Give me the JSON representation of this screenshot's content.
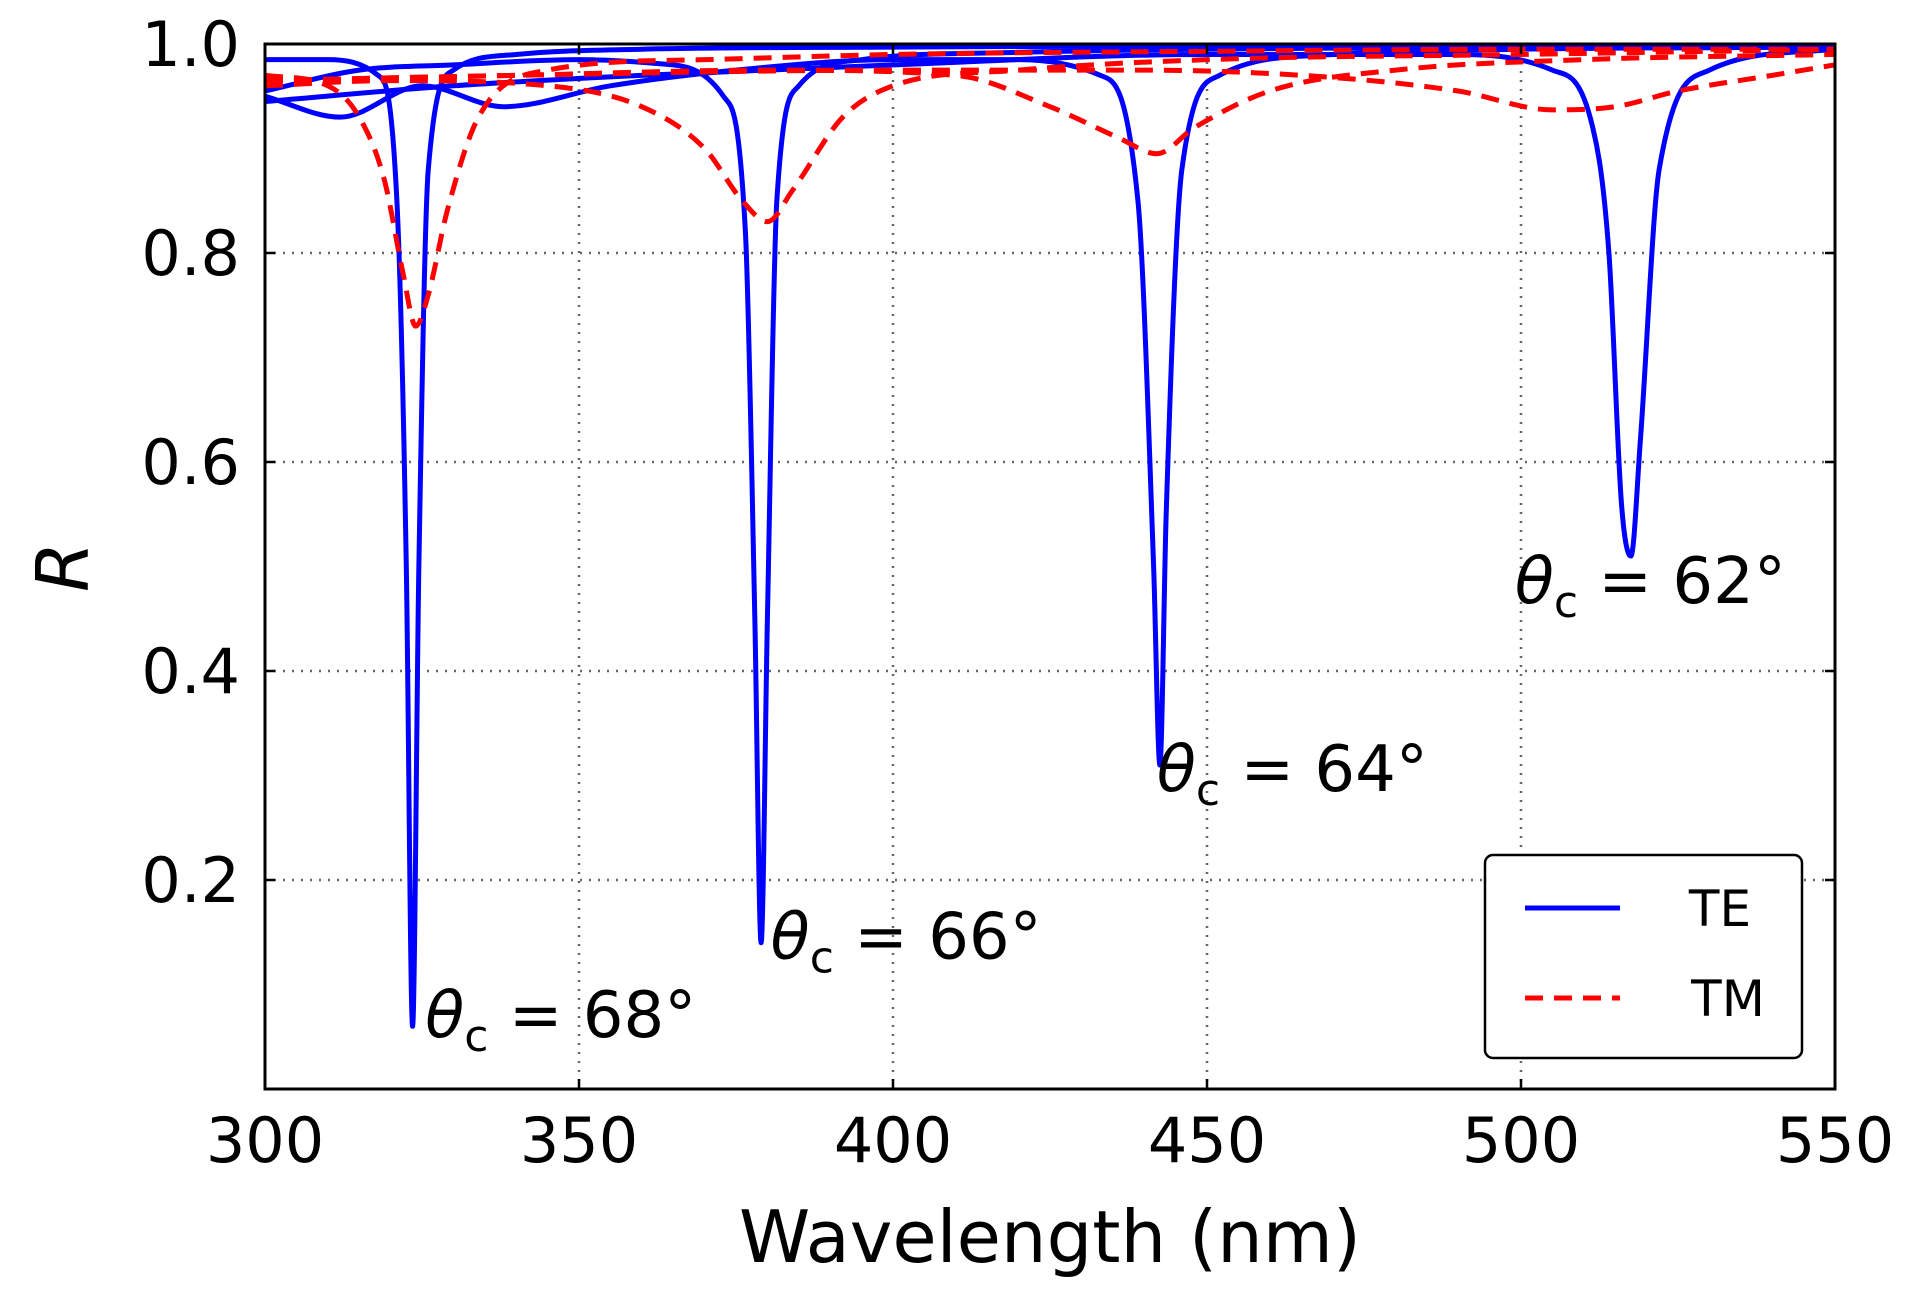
{
  "chart_data": {
    "type": "line",
    "xlabel": "Wavelength (nm)",
    "ylabel": "R",
    "xlim": [
      300,
      550
    ],
    "ylim": [
      0,
      1.0
    ],
    "xticks": [
      "300",
      "350",
      "400",
      "450",
      "500",
      "550"
    ],
    "yticks": [
      "0.2",
      "0.4",
      "0.6",
      "0.8",
      "1.0"
    ],
    "grid": true,
    "legend_position": "bottom-right",
    "legend": [
      {
        "label": "TE",
        "color": "#0000ff",
        "style": "solid"
      },
      {
        "label": "TM",
        "color": "#ff0000",
        "style": "dashed"
      }
    ],
    "series": [
      {
        "name": "TE",
        "angle": "68°",
        "color": "#0000ff",
        "dash": "solid",
        "x": [
          300,
          310,
          318,
          321,
          322.5,
          323.5,
          324.5,
          326,
          330,
          340,
          360,
          400,
          450,
          500,
          550
        ],
        "y": [
          0.985,
          0.985,
          0.97,
          0.85,
          0.5,
          0.06,
          0.5,
          0.88,
          0.975,
          0.99,
          0.995,
          0.997,
          0.998,
          0.998,
          0.998
        ]
      },
      {
        "name": "TE",
        "angle": "66°",
        "color": "#0000ff",
        "dash": "solid",
        "x": [
          300,
          315,
          330,
          350,
          365,
          373,
          376.5,
          378,
          379,
          380,
          381.5,
          385,
          395,
          420,
          450,
          500,
          550
        ],
        "y": [
          0.955,
          0.975,
          0.98,
          0.985,
          0.98,
          0.95,
          0.82,
          0.45,
          0.14,
          0.45,
          0.85,
          0.96,
          0.985,
          0.992,
          0.995,
          0.997,
          0.997
        ]
      },
      {
        "name": "TE",
        "angle": "64°",
        "color": "#0000ff",
        "dash": "solid",
        "x": [
          300,
          312,
          325,
          338,
          355,
          375,
          400,
          420,
          433,
          439,
          441.5,
          442.5,
          443.5,
          446,
          452,
          470,
          500,
          550
        ],
        "y": [
          0.95,
          0.93,
          0.96,
          0.94,
          0.96,
          0.975,
          0.985,
          0.985,
          0.97,
          0.85,
          0.5,
          0.31,
          0.55,
          0.88,
          0.97,
          0.99,
          0.995,
          0.997
        ]
      },
      {
        "name": "TE",
        "angle": "62°",
        "color": "#0000ff",
        "dash": "solid",
        "x": [
          300,
          330,
          360,
          400,
          450,
          490,
          505,
          511,
          514,
          516,
          517.5,
          519,
          522,
          530,
          550
        ],
        "y": [
          0.945,
          0.96,
          0.97,
          0.98,
          0.99,
          0.99,
          0.975,
          0.93,
          0.8,
          0.56,
          0.51,
          0.62,
          0.88,
          0.975,
          0.995
        ]
      },
      {
        "name": "TM",
        "angle": "68°",
        "color": "#ff0000",
        "dash": "dashed",
        "x": [
          300,
          310,
          315,
          319,
          322,
          324,
          326,
          329,
          334,
          345,
          370,
          400,
          450,
          500,
          550
        ],
        "y": [
          0.97,
          0.96,
          0.93,
          0.87,
          0.78,
          0.73,
          0.76,
          0.84,
          0.93,
          0.975,
          0.985,
          0.99,
          0.993,
          0.995,
          0.995
        ]
      },
      {
        "name": "TM",
        "angle": "66°",
        "color": "#ff0000",
        "dash": "dashed",
        "x": [
          300,
          320,
          345,
          360,
          370,
          376,
          380,
          384,
          392,
          400,
          420,
          450,
          500,
          550
        ],
        "y": [
          0.96,
          0.965,
          0.96,
          0.94,
          0.9,
          0.85,
          0.83,
          0.86,
          0.93,
          0.96,
          0.975,
          0.985,
          0.99,
          0.995
        ]
      },
      {
        "name": "TM",
        "angle": "64°",
        "color": "#ff0000",
        "dash": "dashed",
        "x": [
          300,
          340,
          380,
          410,
          425,
          436,
          442,
          448,
          460,
          480,
          510,
          550
        ],
        "y": [
          0.965,
          0.97,
          0.975,
          0.97,
          0.94,
          0.91,
          0.895,
          0.92,
          0.955,
          0.975,
          0.985,
          0.99
        ]
      },
      {
        "name": "TM",
        "angle": "62°",
        "color": "#ff0000",
        "dash": "dashed",
        "x": [
          300,
          340,
          400,
          440,
          470,
          490,
          505,
          515,
          525,
          540,
          550
        ],
        "y": [
          0.965,
          0.97,
          0.975,
          0.975,
          0.968,
          0.955,
          0.937,
          0.94,
          0.955,
          0.97,
          0.98
        ]
      }
    ],
    "annotations": [
      {
        "sym": "θ",
        "sub": "c",
        "text": " = 68°",
        "x": 325.5,
        "y": 0.05
      },
      {
        "sym": "θ",
        "sub": "c",
        "text": " = 66°",
        "x": 380.5,
        "y": 0.125
      },
      {
        "sym": "θ",
        "sub": "c",
        "text": " = 64°",
        "x": 442,
        "y": 0.285
      },
      {
        "sym": "θ",
        "sub": "c",
        "text": " = 62°",
        "x": 499,
        "y": 0.465
      }
    ]
  }
}
